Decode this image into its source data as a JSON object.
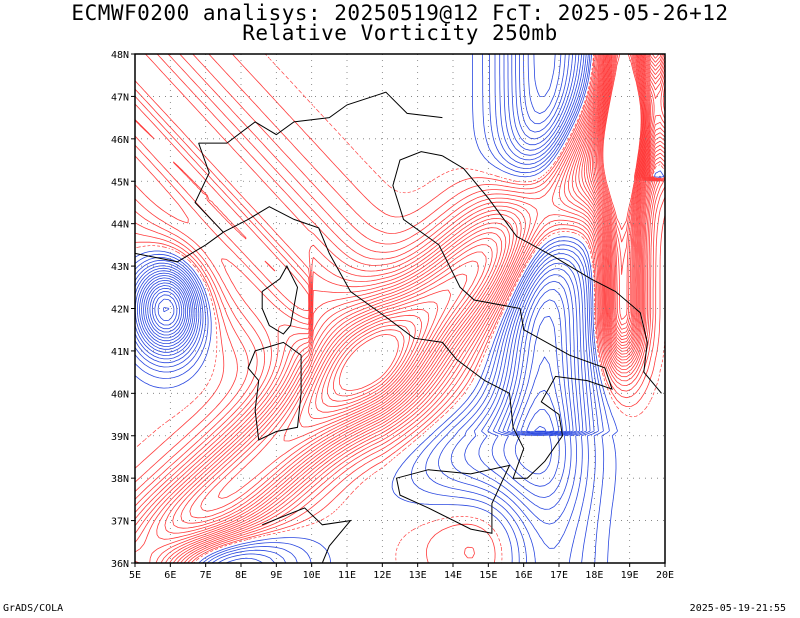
{
  "header": {
    "line1": "ECMWF0200 analisys: 20250519@12 FcT: 2025-05-26+12",
    "line2": "Relative Vorticity 250mb"
  },
  "map": {
    "lon_range": [
      5,
      20
    ],
    "lat_range": [
      36,
      48
    ],
    "lon_labels": [
      "5E",
      "6E",
      "7E",
      "8E",
      "9E",
      "10E",
      "11E",
      "12E",
      "13E",
      "14E",
      "15E",
      "16E",
      "17E",
      "18E",
      "19E",
      "20E"
    ],
    "lat_labels": [
      "36N",
      "37N",
      "38N",
      "39N",
      "40N",
      "41N",
      "42N",
      "43N",
      "44N",
      "45N",
      "46N",
      "47N",
      "48N"
    ],
    "grid": "dotted",
    "positive_color": "#ff3b3b",
    "negative_color": "#2a48e0",
    "coast_color": "#000000"
  },
  "footer": {
    "left": "GrADS/COLA",
    "right": "2025-05-19-21:55"
  }
}
